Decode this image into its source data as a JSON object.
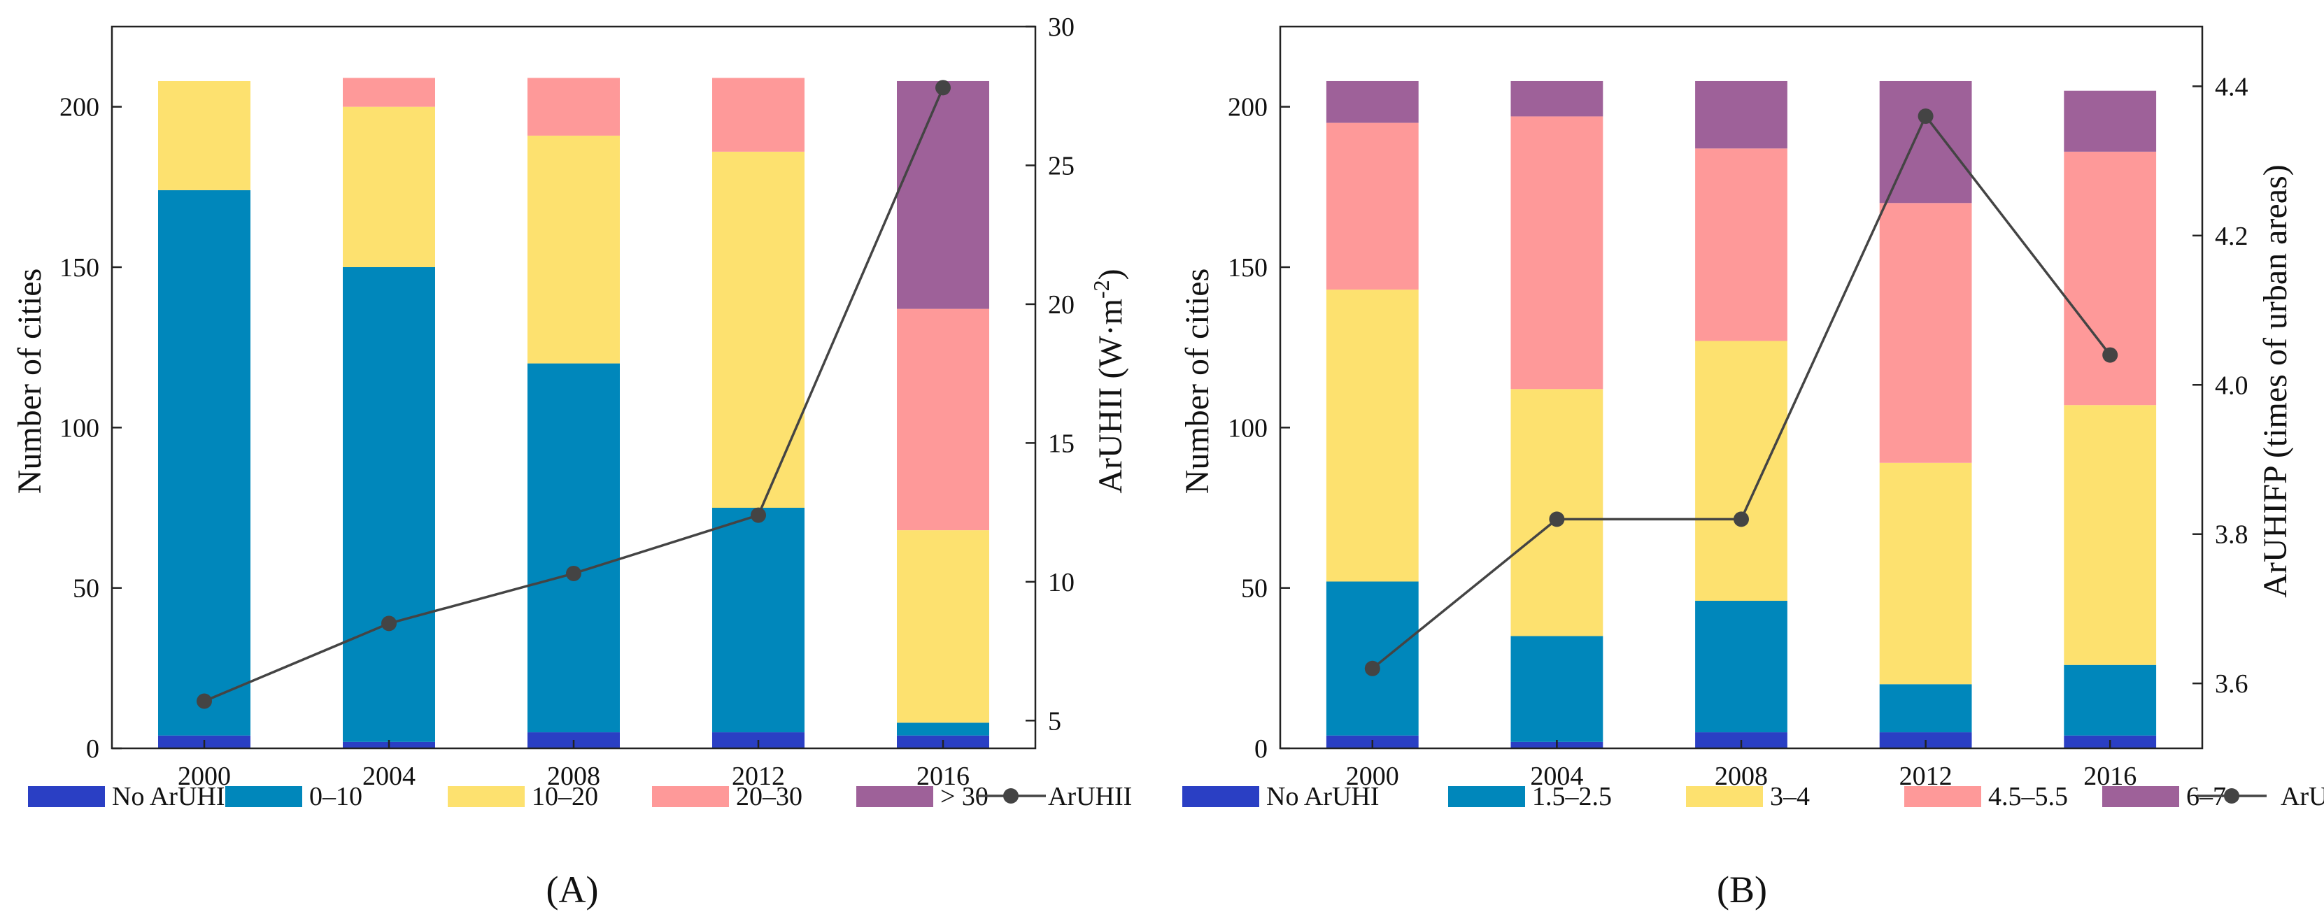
{
  "chart_data": [
    {
      "type": "bar",
      "stacked": true,
      "panel_label": "(A)",
      "categories": [
        "2000",
        "2004",
        "2008",
        "2012",
        "2016"
      ],
      "series": [
        {
          "name": "No ArUHI",
          "color": "#2a3fc4",
          "values": [
            4,
            2,
            5,
            5,
            4
          ]
        },
        {
          "name": "0–10",
          "color": "#0087bb",
          "values": [
            170,
            148,
            115,
            70,
            4
          ]
        },
        {
          "name": "10–20",
          "color": "#fde16f",
          "values": [
            34,
            50,
            71,
            111,
            60
          ]
        },
        {
          "name": "20–30",
          "color": "#fe9999",
          "values": [
            0,
            9,
            18,
            23,
            69
          ]
        },
        {
          "name": "> 30",
          "color": "#9e6199",
          "values": [
            0,
            0,
            0,
            0,
            71
          ]
        }
      ],
      "line": {
        "name": "ArUHII",
        "color": "#444444",
        "values": [
          5.7,
          8.5,
          10.3,
          12.4,
          27.8
        ]
      },
      "ylabel": "Number of cities",
      "ylim": [
        0,
        225
      ],
      "yticks": [
        0,
        50,
        100,
        150,
        200
      ],
      "y2label": "ArUHII (W·m",
      "y2label_sup": "-2",
      "y2label_end": ")",
      "y2lim": [
        4,
        30
      ],
      "y2ticks": [
        5,
        10,
        15,
        20,
        25,
        30
      ],
      "legend": [
        "No ArUHI",
        "0–10",
        "10–20",
        "20–30",
        "> 30",
        "ArUHII"
      ]
    },
    {
      "type": "bar",
      "stacked": true,
      "panel_label": "(B)",
      "categories": [
        "2000",
        "2004",
        "2008",
        "2012",
        "2016"
      ],
      "series": [
        {
          "name": "No ArUHI",
          "color": "#2a3fc4",
          "values": [
            4,
            2,
            5,
            5,
            4
          ]
        },
        {
          "name": "1.5–2.5",
          "color": "#0087bb",
          "values": [
            48,
            33,
            41,
            15,
            22
          ]
        },
        {
          "name": "3–4",
          "color": "#fde16f",
          "values": [
            91,
            77,
            81,
            69,
            81
          ]
        },
        {
          "name": "4.5–5.5",
          "color": "#fe9999",
          "values": [
            52,
            85,
            60,
            81,
            79
          ]
        },
        {
          "name": "6–7",
          "color": "#9e6199",
          "values": [
            13,
            11,
            21,
            38,
            19
          ]
        }
      ],
      "line": {
        "name": "ArUHIFP",
        "color": "#444444",
        "values": [
          3.62,
          3.82,
          3.82,
          4.36,
          4.04
        ]
      },
      "ylabel": "Number of cities",
      "ylim": [
        0,
        225
      ],
      "yticks": [
        0,
        50,
        100,
        150,
        200
      ],
      "y2label": "ArUHIFP  (times of urban areas)",
      "y2lim": [
        3.513,
        4.48
      ],
      "y2ticks": [
        3.6,
        3.8,
        4.0,
        4.2,
        4.4
      ],
      "y2tick_labels": [
        "3.6",
        "3.8",
        "4.0",
        "4.2",
        "4.4"
      ],
      "legend": [
        "No ArUHI",
        "1.5–2.5",
        "3–4",
        "4.5–5.5",
        "6–7",
        "ArUHIFP"
      ]
    }
  ]
}
